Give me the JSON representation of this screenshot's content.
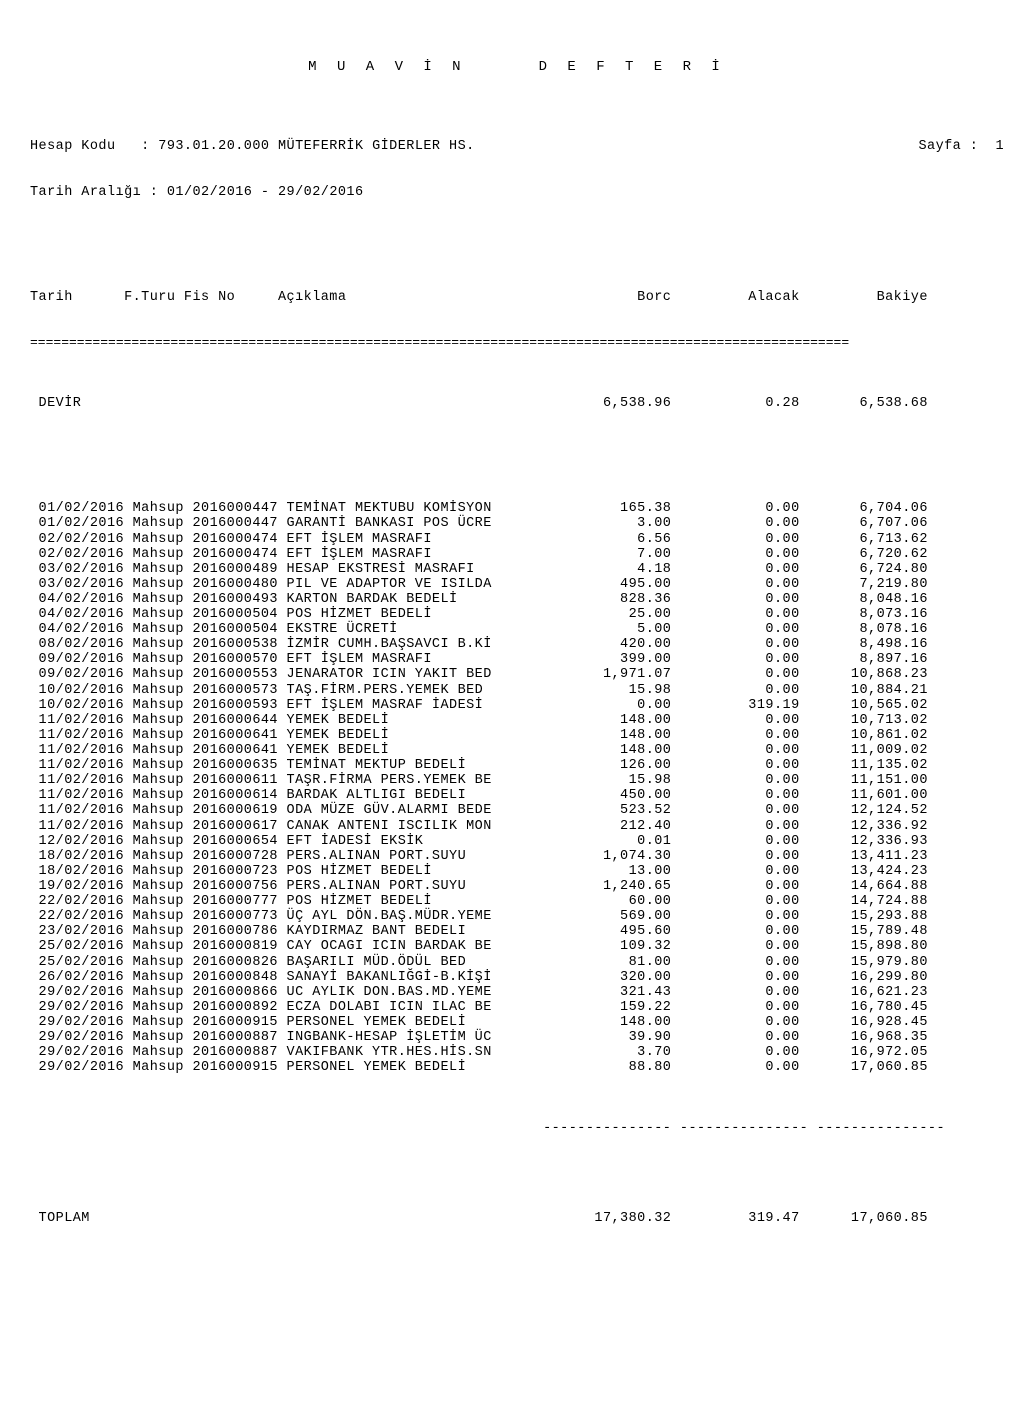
{
  "title": "M U A V İ N     D E F T E R İ",
  "header": {
    "hesap_kodu_label": "Hesap Kodu   :",
    "hesap_kodu": "793.01.20.000 MÜTEFERRİK GİDERLER HS.",
    "tarih_araligi_label": "Tarih Aralığı :",
    "tarih_araligi": "01/02/2016 - 29/02/2016",
    "sayfa_label": "Sayfa :",
    "sayfa": "1"
  },
  "columns": [
    "Tarih",
    "F.Turu",
    "Fis No",
    "Açıklama",
    "Borc",
    "Alacak",
    "Bakiye"
  ],
  "devir_label": "DEVİR",
  "devir": {
    "borc": "6,538.96",
    "alacak": "0.28",
    "bakiye": "6,538.68"
  },
  "toplam_label": "TOPLAM",
  "toplam": {
    "borc": "17,380.32",
    "alacak": "319.47",
    "bakiye": "17,060.85"
  },
  "col_widths": {
    "tarih": 11,
    "fturu": 7,
    "fisno": 11,
    "aciklama": 31,
    "borc": 15,
    "alacak": 15,
    "bakiye": 15
  },
  "separator_char": "=",
  "dash_row": "                                                            --------------- --------------- ---------------",
  "rows": [
    {
      "tarih": "01/02/2016",
      "fturu": "Mahsup",
      "fisno": "2016000447",
      "aciklama": "TEMİNAT MEKTUBU KOMİSYON",
      "borc": "165.38",
      "alacak": "0.00",
      "bakiye": "6,704.06"
    },
    {
      "tarih": "01/02/2016",
      "fturu": "Mahsup",
      "fisno": "2016000447",
      "aciklama": "GARANTİ BANKASI POS ÜCRE",
      "borc": "3.00",
      "alacak": "0.00",
      "bakiye": "6,707.06"
    },
    {
      "tarih": "02/02/2016",
      "fturu": "Mahsup",
      "fisno": "2016000474",
      "aciklama": "EFT İŞLEM MASRAFI",
      "borc": "6.56",
      "alacak": "0.00",
      "bakiye": "6,713.62"
    },
    {
      "tarih": "02/02/2016",
      "fturu": "Mahsup",
      "fisno": "2016000474",
      "aciklama": "EFT İŞLEM MASRAFI",
      "borc": "7.00",
      "alacak": "0.00",
      "bakiye": "6,720.62"
    },
    {
      "tarih": "03/02/2016",
      "fturu": "Mahsup",
      "fisno": "2016000489",
      "aciklama": "HESAP EKSTRESİ MASRAFI",
      "borc": "4.18",
      "alacak": "0.00",
      "bakiye": "6,724.80"
    },
    {
      "tarih": "03/02/2016",
      "fturu": "Mahsup",
      "fisno": "2016000480",
      "aciklama": "PIL VE ADAPTOR VE ISILDA",
      "borc": "495.00",
      "alacak": "0.00",
      "bakiye": "7,219.80"
    },
    {
      "tarih": "04/02/2016",
      "fturu": "Mahsup",
      "fisno": "2016000493",
      "aciklama": "KARTON BARDAK BEDELİ",
      "borc": "828.36",
      "alacak": "0.00",
      "bakiye": "8,048.16"
    },
    {
      "tarih": "04/02/2016",
      "fturu": "Mahsup",
      "fisno": "2016000504",
      "aciklama": "POS HİZMET BEDELİ",
      "borc": "25.00",
      "alacak": "0.00",
      "bakiye": "8,073.16"
    },
    {
      "tarih": "04/02/2016",
      "fturu": "Mahsup",
      "fisno": "2016000504",
      "aciklama": "EKSTRE ÜCRETİ",
      "borc": "5.00",
      "alacak": "0.00",
      "bakiye": "8,078.16"
    },
    {
      "tarih": "08/02/2016",
      "fturu": "Mahsup",
      "fisno": "2016000538",
      "aciklama": "İZMİR CUMH.BAŞSAVCI B.Kİ",
      "borc": "420.00",
      "alacak": "0.00",
      "bakiye": "8,498.16"
    },
    {
      "tarih": "09/02/2016",
      "fturu": "Mahsup",
      "fisno": "2016000570",
      "aciklama": "EFT İŞLEM MASRAFI",
      "borc": "399.00",
      "alacak": "0.00",
      "bakiye": "8,897.16"
    },
    {
      "tarih": "09/02/2016",
      "fturu": "Mahsup",
      "fisno": "2016000553",
      "aciklama": "JENARATOR ICIN YAKIT BED",
      "borc": "1,971.07",
      "alacak": "0.00",
      "bakiye": "10,868.23"
    },
    {
      "tarih": "10/02/2016",
      "fturu": "Mahsup",
      "fisno": "2016000573",
      "aciklama": "TAŞ.FİRM.PERS.YEMEK BED",
      "borc": "15.98",
      "alacak": "0.00",
      "bakiye": "10,884.21"
    },
    {
      "tarih": "10/02/2016",
      "fturu": "Mahsup",
      "fisno": "2016000593",
      "aciklama": "EFT İŞLEM MASRAF İADESİ",
      "borc": "0.00",
      "alacak": "319.19",
      "bakiye": "10,565.02"
    },
    {
      "tarih": "11/02/2016",
      "fturu": "Mahsup",
      "fisno": "2016000644",
      "aciklama": "YEMEK BEDELİ",
      "borc": "148.00",
      "alacak": "0.00",
      "bakiye": "10,713.02"
    },
    {
      "tarih": "11/02/2016",
      "fturu": "Mahsup",
      "fisno": "2016000641",
      "aciklama": "YEMEK BEDELİ",
      "borc": "148.00",
      "alacak": "0.00",
      "bakiye": "10,861.02"
    },
    {
      "tarih": "11/02/2016",
      "fturu": "Mahsup",
      "fisno": "2016000641",
      "aciklama": "YEMEK BEDELİ",
      "borc": "148.00",
      "alacak": "0.00",
      "bakiye": "11,009.02"
    },
    {
      "tarih": "11/02/2016",
      "fturu": "Mahsup",
      "fisno": "2016000635",
      "aciklama": "TEMİNAT MEKTUP BEDELİ",
      "borc": "126.00",
      "alacak": "0.00",
      "bakiye": "11,135.02"
    },
    {
      "tarih": "11/02/2016",
      "fturu": "Mahsup",
      "fisno": "2016000611",
      "aciklama": "TAŞR.FİRMA PERS.YEMEK BE",
      "borc": "15.98",
      "alacak": "0.00",
      "bakiye": "11,151.00"
    },
    {
      "tarih": "11/02/2016",
      "fturu": "Mahsup",
      "fisno": "2016000614",
      "aciklama": "BARDAK ALTLIGI BEDELI",
      "borc": "450.00",
      "alacak": "0.00",
      "bakiye": "11,601.00"
    },
    {
      "tarih": "11/02/2016",
      "fturu": "Mahsup",
      "fisno": "2016000619",
      "aciklama": "ODA MÜZE GÜV.ALARMI BEDE",
      "borc": "523.52",
      "alacak": "0.00",
      "bakiye": "12,124.52"
    },
    {
      "tarih": "11/02/2016",
      "fturu": "Mahsup",
      "fisno": "2016000617",
      "aciklama": "CANAK ANTENI ISCILIK MON",
      "borc": "212.40",
      "alacak": "0.00",
      "bakiye": "12,336.92"
    },
    {
      "tarih": "12/02/2016",
      "fturu": "Mahsup",
      "fisno": "2016000654",
      "aciklama": "EFT İADESİ EKSİK",
      "borc": "0.01",
      "alacak": "0.00",
      "bakiye": "12,336.93"
    },
    {
      "tarih": "18/02/2016",
      "fturu": "Mahsup",
      "fisno": "2016000728",
      "aciklama": "PERS.ALINAN PORT.SUYU",
      "borc": "1,074.30",
      "alacak": "0.00",
      "bakiye": "13,411.23"
    },
    {
      "tarih": "18/02/2016",
      "fturu": "Mahsup",
      "fisno": "2016000723",
      "aciklama": "POS HİZMET BEDELİ",
      "borc": "13.00",
      "alacak": "0.00",
      "bakiye": "13,424.23"
    },
    {
      "tarih": "19/02/2016",
      "fturu": "Mahsup",
      "fisno": "2016000756",
      "aciklama": "PERS.ALINAN PORT.SUYU",
      "borc": "1,240.65",
      "alacak": "0.00",
      "bakiye": "14,664.88"
    },
    {
      "tarih": "22/02/2016",
      "fturu": "Mahsup",
      "fisno": "2016000777",
      "aciklama": "POS HİZMET BEDELİ",
      "borc": "60.00",
      "alacak": "0.00",
      "bakiye": "14,724.88"
    },
    {
      "tarih": "22/02/2016",
      "fturu": "Mahsup",
      "fisno": "2016000773",
      "aciklama": "ÜÇ AYL DÖN.BAŞ.MÜDR.YEME",
      "borc": "569.00",
      "alacak": "0.00",
      "bakiye": "15,293.88"
    },
    {
      "tarih": "23/02/2016",
      "fturu": "Mahsup",
      "fisno": "2016000786",
      "aciklama": "KAYDIRMAZ BANT BEDELI",
      "borc": "495.60",
      "alacak": "0.00",
      "bakiye": "15,789.48"
    },
    {
      "tarih": "25/02/2016",
      "fturu": "Mahsup",
      "fisno": "2016000819",
      "aciklama": "CAY OCAGI ICIN BARDAK BE",
      "borc": "109.32",
      "alacak": "0.00",
      "bakiye": "15,898.80"
    },
    {
      "tarih": "25/02/2016",
      "fturu": "Mahsup",
      "fisno": "2016000826",
      "aciklama": "BAŞARILI MÜD.ÖDÜL BED",
      "borc": "81.00",
      "alacak": "0.00",
      "bakiye": "15,979.80"
    },
    {
      "tarih": "26/02/2016",
      "fturu": "Mahsup",
      "fisno": "2016000848",
      "aciklama": "SANAYİ BAKANLIĞGİ-B.KİŞİ",
      "borc": "320.00",
      "alacak": "0.00",
      "bakiye": "16,299.80"
    },
    {
      "tarih": "29/02/2016",
      "fturu": "Mahsup",
      "fisno": "2016000866",
      "aciklama": "UC AYLIK DON.BAS.MD.YEME",
      "borc": "321.43",
      "alacak": "0.00",
      "bakiye": "16,621.23"
    },
    {
      "tarih": "29/02/2016",
      "fturu": "Mahsup",
      "fisno": "2016000892",
      "aciklama": "ECZA DOLABI ICIN ILAC BE",
      "borc": "159.22",
      "alacak": "0.00",
      "bakiye": "16,780.45"
    },
    {
      "tarih": "29/02/2016",
      "fturu": "Mahsup",
      "fisno": "2016000915",
      "aciklama": "PERSONEL YEMEK BEDELİ",
      "borc": "148.00",
      "alacak": "0.00",
      "bakiye": "16,928.45"
    },
    {
      "tarih": "29/02/2016",
      "fturu": "Mahsup",
      "fisno": "2016000887",
      "aciklama": "INGBANK-HESAP İŞLETİM ÜC",
      "borc": "39.90",
      "alacak": "0.00",
      "bakiye": "16,968.35"
    },
    {
      "tarih": "29/02/2016",
      "fturu": "Mahsup",
      "fisno": "2016000887",
      "aciklama": "VAKIFBANK YTR.HES.HİS.SN",
      "borc": "3.70",
      "alacak": "0.00",
      "bakiye": "16,972.05"
    },
    {
      "tarih": "29/02/2016",
      "fturu": "Mahsup",
      "fisno": "2016000915",
      "aciklama": "PERSONEL YEMEK BEDELİ",
      "borc": "88.80",
      "alacak": "0.00",
      "bakiye": "17,060.85"
    }
  ]
}
